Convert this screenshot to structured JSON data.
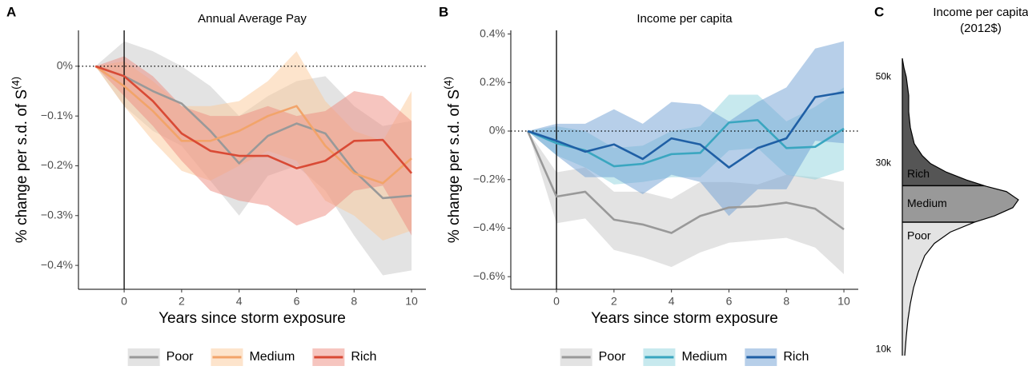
{
  "chart_data": [
    {
      "type": "line",
      "panel_label": "A",
      "title": "Annual Average Pay",
      "xlabel": "Years since storm exposure",
      "ylabel": "% change per s.d. of S",
      "ylabel_superscript": "(4)",
      "x": [
        -1,
        0,
        1,
        2,
        3,
        4,
        5,
        6,
        7,
        8,
        9,
        10
      ],
      "xlim": [
        -1.59,
        10.5
      ],
      "xticks": [
        0,
        2,
        4,
        6,
        8,
        10
      ],
      "ylim": [
        -0.448,
        0.072
      ],
      "yticks": [
        {
          "value": 0,
          "label": "0%"
        },
        {
          "value": -0.1,
          "label": "−0.1%"
        },
        {
          "value": -0.2,
          "label": "−0.2%"
        },
        {
          "value": -0.3,
          "label": "−0.3%"
        },
        {
          "value": -0.4,
          "label": "−0.4%"
        }
      ],
      "hline": 0,
      "vline": 0,
      "legend": "bottom",
      "series": [
        {
          "name": "Poor",
          "color": "#999999",
          "band_color": "#c8c8c8",
          "values": [
            0,
            -0.02,
            -0.05,
            -0.075,
            -0.13,
            -0.195,
            -0.14,
            -0.115,
            -0.135,
            -0.21,
            -0.265,
            -0.26
          ],
          "upper": [
            0,
            0.05,
            0.03,
            0.0,
            -0.04,
            -0.1,
            -0.06,
            -0.03,
            -0.02,
            -0.08,
            -0.12,
            -0.11
          ],
          "lower": [
            0,
            -0.08,
            -0.13,
            -0.16,
            -0.23,
            -0.3,
            -0.22,
            -0.2,
            -0.25,
            -0.34,
            -0.42,
            -0.41
          ]
        },
        {
          "name": "Medium",
          "color": "#f2a46a",
          "band_color": "#fbc99a",
          "values": [
            0,
            -0.04,
            -0.09,
            -0.15,
            -0.15,
            -0.13,
            -0.1,
            -0.08,
            -0.16,
            -0.215,
            -0.235,
            -0.185
          ],
          "upper": [
            0,
            0.01,
            -0.03,
            -0.08,
            -0.08,
            -0.07,
            -0.03,
            0.03,
            -0.07,
            -0.13,
            -0.15,
            -0.05
          ],
          "lower": [
            0,
            -0.08,
            -0.15,
            -0.21,
            -0.23,
            -0.2,
            -0.17,
            -0.19,
            -0.27,
            -0.3,
            -0.35,
            -0.33
          ]
        },
        {
          "name": "Rich",
          "color": "#d94a35",
          "band_color": "#ee8c80",
          "values": [
            0,
            -0.02,
            -0.07,
            -0.135,
            -0.17,
            -0.18,
            -0.18,
            -0.205,
            -0.19,
            -0.15,
            -0.148,
            -0.215
          ],
          "upper": [
            0,
            0.02,
            -0.02,
            -0.08,
            -0.1,
            -0.1,
            -0.08,
            -0.1,
            -0.09,
            -0.05,
            -0.06,
            -0.11
          ],
          "lower": [
            0,
            -0.06,
            -0.12,
            -0.19,
            -0.25,
            -0.27,
            -0.28,
            -0.32,
            -0.3,
            -0.25,
            -0.24,
            -0.34
          ]
        }
      ]
    },
    {
      "type": "line",
      "panel_label": "B",
      "title": "Income per capita",
      "xlabel": "Years since storm exposure",
      "ylabel": "% change per s.d. of S",
      "ylabel_superscript": "(4)",
      "x": [
        -1,
        0,
        1,
        2,
        3,
        4,
        5,
        6,
        7,
        8,
        9,
        10
      ],
      "xlim": [
        -1.59,
        10.5
      ],
      "xticks": [
        0,
        2,
        4,
        6,
        8,
        10
      ],
      "ylim": [
        -0.652,
        0.415
      ],
      "yticks": [
        {
          "value": 0.4,
          "label": "0.4%"
        },
        {
          "value": 0.2,
          "label": "0.2%"
        },
        {
          "value": 0,
          "label": "0%"
        },
        {
          "value": -0.2,
          "label": "−0.2%"
        },
        {
          "value": -0.4,
          "label": "−0.4%"
        },
        {
          "value": -0.6,
          "label": "−0.6%"
        }
      ],
      "hline": 0,
      "vline": 0,
      "legend": "bottom",
      "series": [
        {
          "name": "Poor",
          "color": "#999999",
          "band_color": "#c8c8c8",
          "values": [
            0,
            -0.27,
            -0.25,
            -0.365,
            -0.385,
            -0.42,
            -0.35,
            -0.315,
            -0.31,
            -0.295,
            -0.32,
            -0.405
          ],
          "upper": [
            0,
            -0.17,
            -0.15,
            -0.25,
            -0.25,
            -0.28,
            -0.21,
            -0.21,
            -0.22,
            -0.18,
            -0.19,
            -0.21
          ],
          "lower": [
            0,
            -0.38,
            -0.36,
            -0.49,
            -0.52,
            -0.56,
            -0.5,
            -0.46,
            -0.45,
            -0.44,
            -0.48,
            -0.59
          ]
        },
        {
          "name": "Medium",
          "color": "#3aa6c0",
          "band_color": "#8fd3dd",
          "values": [
            0,
            -0.05,
            -0.08,
            -0.145,
            -0.135,
            -0.095,
            -0.09,
            0.035,
            0.045,
            -0.07,
            -0.065,
            0.01
          ],
          "upper": [
            0,
            0.02,
            0.0,
            -0.07,
            -0.06,
            0.0,
            0.02,
            0.15,
            0.15,
            0.04,
            0.1,
            0.18
          ],
          "lower": [
            0,
            -0.1,
            -0.15,
            -0.22,
            -0.21,
            -0.19,
            -0.19,
            -0.08,
            -0.07,
            -0.18,
            -0.2,
            -0.16
          ]
        },
        {
          "name": "Rich",
          "color": "#1f5fa5",
          "band_color": "#6f9fd3",
          "values": [
            0,
            -0.04,
            -0.085,
            -0.055,
            -0.115,
            -0.03,
            -0.055,
            -0.15,
            -0.07,
            -0.03,
            0.14,
            0.16
          ],
          "upper": [
            0,
            0.03,
            0.03,
            0.09,
            0.03,
            0.12,
            0.11,
            0.04,
            0.12,
            0.18,
            0.34,
            0.37
          ],
          "lower": [
            0,
            -0.1,
            -0.19,
            -0.19,
            -0.26,
            -0.18,
            -0.21,
            -0.35,
            -0.24,
            -0.24,
            -0.04,
            -0.05
          ]
        }
      ]
    },
    {
      "type": "density",
      "panel_label": "C",
      "title": [
        "Income per capita",
        "(2012$)"
      ],
      "log_y": true,
      "ylim": [
        9640,
        55800
      ],
      "yticks": [
        {
          "value": 10000,
          "label": "10k"
        },
        {
          "value": 30000,
          "label": "30k"
        },
        {
          "value": 50000,
          "label": "50k"
        }
      ],
      "y": [
        55800,
        52800,
        50000,
        44800,
        40700,
        37100,
        33700,
        31400,
        30000,
        28500,
        27200,
        26200,
        25400,
        24200,
        23100,
        22000,
        21200,
        20000,
        18700,
        17400,
        15800,
        14400,
        13100,
        11900,
        10800,
        9640
      ],
      "density": [
        0,
        0.014,
        0.034,
        0.055,
        0.055,
        0.069,
        0.103,
        0.172,
        0.241,
        0.379,
        0.552,
        0.724,
        0.897,
        1.0,
        0.952,
        0.793,
        0.621,
        0.414,
        0.276,
        0.193,
        0.138,
        0.097,
        0.069,
        0.048,
        0.034,
        0.021
      ],
      "groups": [
        {
          "name": "Rich",
          "color": "#555555",
          "range": [
            26300,
            55800
          ]
        },
        {
          "name": "Medium",
          "color": "#999999",
          "range": [
            21200,
            26300
          ]
        },
        {
          "name": "Poor",
          "color": "#e3e3e3",
          "range": [
            9640,
            21200
          ]
        }
      ]
    }
  ]
}
